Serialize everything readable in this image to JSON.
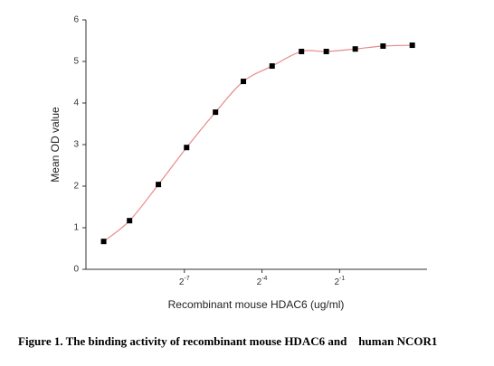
{
  "chart_data": {
    "type": "scatter-curve",
    "x_label": "Recombinant mouse HDAC6 (ug/ml)",
    "y_label": "Mean OD value",
    "caption": "Figure 1. The binding activity of recombinant mouse HDAC6 and    human NCOR1",
    "x_scale": "log2",
    "x": [
      0.0009,
      0.0018,
      0.0039,
      0.0083,
      0.018,
      0.038,
      0.082,
      0.18,
      0.35,
      0.76,
      1.6,
      3.5
    ],
    "values": [
      0.67,
      1.17,
      2.04,
      2.93,
      3.78,
      4.52,
      4.89,
      5.24,
      5.24,
      5.3,
      5.37,
      5.39
    ],
    "color": "#000000",
    "curve_color": "#e88a8a",
    "xlim": [
      0.00056,
      5.2
    ],
    "xticks": [
      {
        "value": 0.0078125,
        "label": "2-7"
      },
      {
        "value": 0.0625,
        "label": "2-4"
      },
      {
        "value": 0.5,
        "label": "2-1"
      }
    ],
    "ylim": [
      0,
      6
    ],
    "yticks": [
      0,
      1,
      2,
      3,
      4,
      5,
      6
    ]
  }
}
